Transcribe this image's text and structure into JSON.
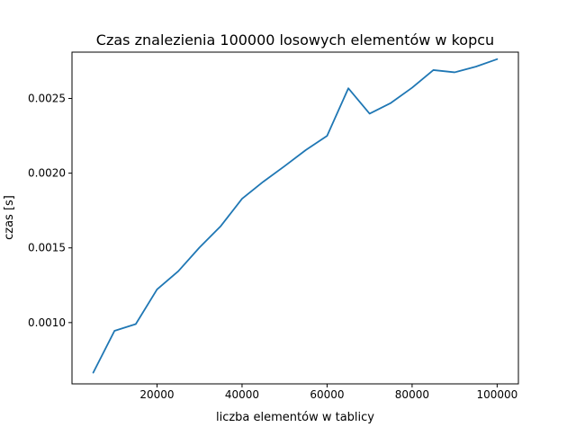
{
  "chart_data": {
    "type": "line",
    "title": "Czas znalezienia 100000 losowych elementów w kopcu",
    "xlabel": "liczba elementów w tablicy",
    "ylabel": "czas [s]",
    "xlim": [
      0,
      105000
    ],
    "ylim": [
      0.00059,
      0.00281
    ],
    "grid": false,
    "x_ticks": [
      20000,
      40000,
      60000,
      80000,
      100000
    ],
    "x_tick_labels": [
      "20000",
      "40000",
      "60000",
      "80000",
      "100000"
    ],
    "y_ticks": [
      0.001,
      0.0015,
      0.002,
      0.0025
    ],
    "y_tick_labels": [
      "0.0010",
      "0.0015",
      "0.0020",
      "0.0025"
    ],
    "series": [
      {
        "color": "#1f77b4",
        "x": [
          5000,
          10000,
          15000,
          20000,
          25000,
          30000,
          35000,
          40000,
          45000,
          50000,
          55000,
          60000,
          65000,
          70000,
          75000,
          80000,
          85000,
          90000,
          95000,
          100000
        ],
        "y": [
          0.000665,
          0.000945,
          0.00099,
          0.001222,
          0.001344,
          0.001503,
          0.001646,
          0.001829,
          0.001943,
          0.002047,
          0.002155,
          0.00225,
          0.002568,
          0.002398,
          0.00247,
          0.002572,
          0.00269,
          0.002675,
          0.002713,
          0.002763
        ]
      }
    ]
  }
}
